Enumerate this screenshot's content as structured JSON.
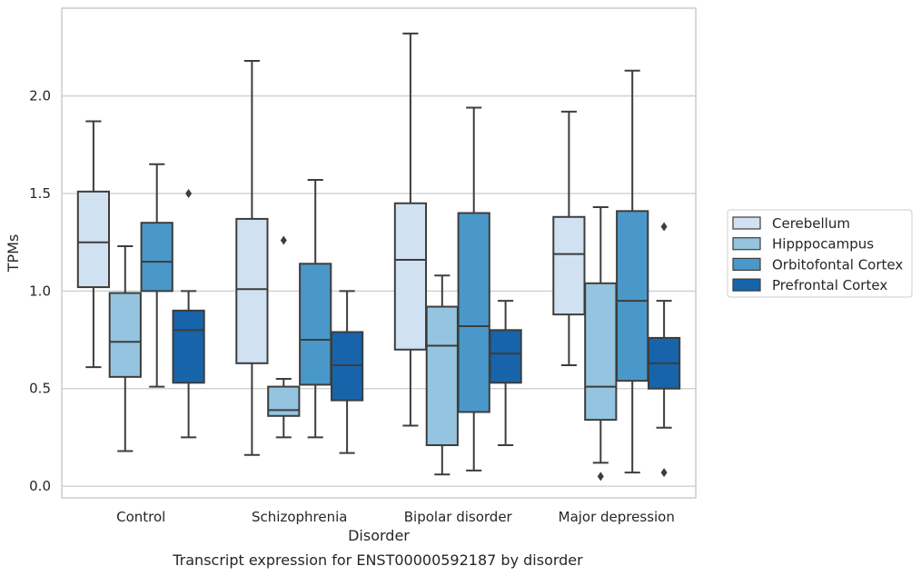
{
  "chart_data": {
    "type": "box",
    "caption": "Transcript expression for ENST00000592187 by disorder",
    "xlabel": "Disorder",
    "ylabel": "TPMs",
    "ylim": [
      -0.06,
      2.45
    ],
    "yticks": [
      0.0,
      0.5,
      1.0,
      1.5,
      2.0
    ],
    "ytick_labels": [
      "0.0",
      "0.5",
      "1.0",
      "1.5",
      "2.0"
    ],
    "grid": "horizontal",
    "legend_position": "right",
    "categories": [
      "Control",
      "Schizophrenia",
      "Bipolar disorder",
      "Major depression"
    ],
    "series": [
      {
        "name": "Cerebellum",
        "color": "#d0e1f2",
        "boxes": [
          {
            "whisker_low": 0.61,
            "q1": 1.02,
            "median": 1.25,
            "q3": 1.51,
            "whisker_high": 1.87,
            "outliers": []
          },
          {
            "whisker_low": 0.16,
            "q1": 0.63,
            "median": 1.01,
            "q3": 1.37,
            "whisker_high": 2.18,
            "outliers": []
          },
          {
            "whisker_low": 0.31,
            "q1": 0.7,
            "median": 1.16,
            "q3": 1.45,
            "whisker_high": 2.32,
            "outliers": []
          },
          {
            "whisker_low": 0.62,
            "q1": 0.88,
            "median": 1.19,
            "q3": 1.38,
            "whisker_high": 1.92,
            "outliers": []
          }
        ]
      },
      {
        "name": "Hipppocampus",
        "color": "#94c4df",
        "boxes": [
          {
            "whisker_low": 0.18,
            "q1": 0.56,
            "median": 0.74,
            "q3": 0.99,
            "whisker_high": 1.23,
            "outliers": []
          },
          {
            "whisker_low": 0.25,
            "q1": 0.36,
            "median": 0.39,
            "q3": 0.51,
            "whisker_high": 0.55,
            "outliers": [
              1.26
            ]
          },
          {
            "whisker_low": 0.06,
            "q1": 0.21,
            "median": 0.72,
            "q3": 0.92,
            "whisker_high": 1.08,
            "outliers": []
          },
          {
            "whisker_low": 0.12,
            "q1": 0.34,
            "median": 0.51,
            "q3": 1.04,
            "whisker_high": 1.43,
            "outliers": [
              0.05
            ]
          }
        ]
      },
      {
        "name": "Orbitofontal Cortex",
        "color": "#4a98c9",
        "boxes": [
          {
            "whisker_low": 0.51,
            "q1": 1.0,
            "median": 1.15,
            "q3": 1.35,
            "whisker_high": 1.65,
            "outliers": []
          },
          {
            "whisker_low": 0.25,
            "q1": 0.52,
            "median": 0.75,
            "q3": 1.14,
            "whisker_high": 1.57,
            "outliers": []
          },
          {
            "whisker_low": 0.08,
            "q1": 0.38,
            "median": 0.82,
            "q3": 1.4,
            "whisker_high": 1.94,
            "outliers": []
          },
          {
            "whisker_low": 0.07,
            "q1": 0.54,
            "median": 0.95,
            "q3": 1.41,
            "whisker_high": 2.13,
            "outliers": []
          }
        ]
      },
      {
        "name": "Prefrontal Cortex",
        "color": "#1764ab",
        "boxes": [
          {
            "whisker_low": 0.25,
            "q1": 0.53,
            "median": 0.8,
            "q3": 0.9,
            "whisker_high": 1.0,
            "outliers": [
              1.5
            ]
          },
          {
            "whisker_low": 0.17,
            "q1": 0.44,
            "median": 0.62,
            "q3": 0.79,
            "whisker_high": 1.0,
            "outliers": []
          },
          {
            "whisker_low": 0.21,
            "q1": 0.53,
            "median": 0.68,
            "q3": 0.8,
            "whisker_high": 0.95,
            "outliers": []
          },
          {
            "whisker_low": 0.3,
            "q1": 0.5,
            "median": 0.63,
            "q3": 0.76,
            "whisker_high": 0.95,
            "outliers": [
              1.33,
              0.07
            ]
          }
        ]
      }
    ]
  }
}
